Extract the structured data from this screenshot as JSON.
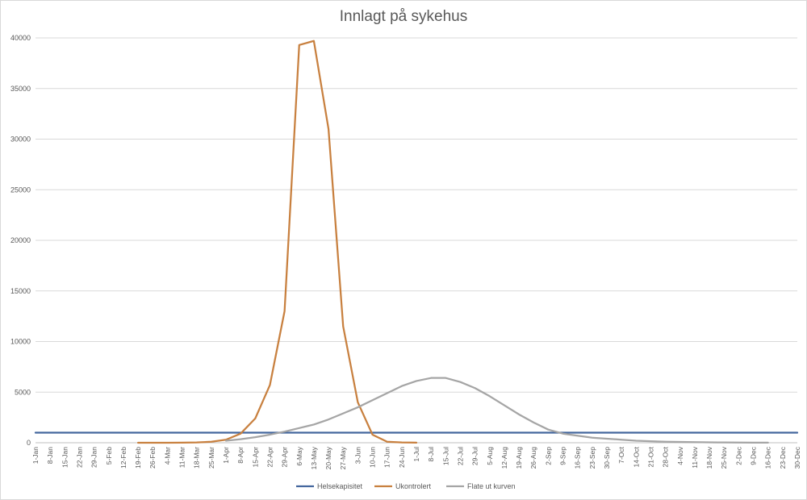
{
  "chart_data": {
    "type": "line",
    "title": "Innlagt på sykehus",
    "xlabel": "",
    "ylabel": "",
    "ylim": [
      0,
      40000
    ],
    "yticks": [
      0,
      5000,
      10000,
      15000,
      20000,
      25000,
      30000,
      35000,
      40000
    ],
    "grid": true,
    "legend_position": "bottom",
    "categories": [
      "1-Jan",
      "8-Jan",
      "15-Jan",
      "22-Jan",
      "29-Jan",
      "5-Feb",
      "12-Feb",
      "19-Feb",
      "26-Feb",
      "4-Mar",
      "11-Mar",
      "18-Mar",
      "25-Mar",
      "1-Apr",
      "8-Apr",
      "15-Apr",
      "22-Apr",
      "29-Apr",
      "6-May",
      "13-May",
      "20-May",
      "27-May",
      "3-Jun",
      "10-Jun",
      "17-Jun",
      "24-Jun",
      "1-Jul",
      "8-Jul",
      "15-Jul",
      "22-Jul",
      "29-Jul",
      "5-Aug",
      "12-Aug",
      "19-Aug",
      "26-Aug",
      "2-Sep",
      "9-Sep",
      "16-Sep",
      "23-Sep",
      "30-Sep",
      "7-Oct",
      "14-Oct",
      "21-Oct",
      "28-Oct",
      "4-Nov",
      "11-Nov",
      "18-Nov",
      "25-Nov",
      "2-Dec",
      "9-Dec",
      "16-Dec",
      "23-Dec",
      "30-Dec"
    ],
    "series": [
      {
        "name": "Helsekapisitet",
        "color": "#44679e",
        "values": [
          1000,
          1000,
          1000,
          1000,
          1000,
          1000,
          1000,
          1000,
          1000,
          1000,
          1000,
          1000,
          1000,
          1000,
          1000,
          1000,
          1000,
          1000,
          1000,
          1000,
          1000,
          1000,
          1000,
          1000,
          1000,
          1000,
          1000,
          1000,
          1000,
          1000,
          1000,
          1000,
          1000,
          1000,
          1000,
          1000,
          1000,
          1000,
          1000,
          1000,
          1000,
          1000,
          1000,
          1000,
          1000,
          1000,
          1000,
          1000,
          1000,
          1000,
          1000,
          1000,
          1000
        ]
      },
      {
        "name": "Ukontrolert",
        "color": "#c8803f",
        "values": [
          null,
          null,
          null,
          null,
          null,
          null,
          null,
          0,
          0,
          0,
          10,
          30,
          100,
          300,
          900,
          2400,
          5700,
          13000,
          39300,
          39700,
          31000,
          11500,
          4000,
          800,
          100,
          30,
          10,
          null,
          null,
          null,
          null,
          null,
          null,
          null,
          null,
          null,
          null,
          null,
          null,
          null,
          null,
          null,
          null,
          null,
          null,
          null,
          null,
          null,
          null,
          null,
          null,
          null,
          null
        ]
      },
      {
        "name": "Flate ut kurven",
        "color": "#a5a5a5",
        "values": [
          null,
          null,
          null,
          null,
          null,
          null,
          null,
          null,
          null,
          null,
          null,
          null,
          null,
          200,
          350,
          550,
          800,
          1100,
          1450,
          1800,
          2300,
          2900,
          3500,
          4200,
          4900,
          5600,
          6100,
          6400,
          6400,
          6000,
          5400,
          4600,
          3700,
          2800,
          2000,
          1300,
          900,
          700,
          500,
          400,
          300,
          200,
          150,
          100,
          80,
          60,
          40,
          30,
          20,
          10,
          10,
          null,
          null
        ]
      }
    ]
  }
}
